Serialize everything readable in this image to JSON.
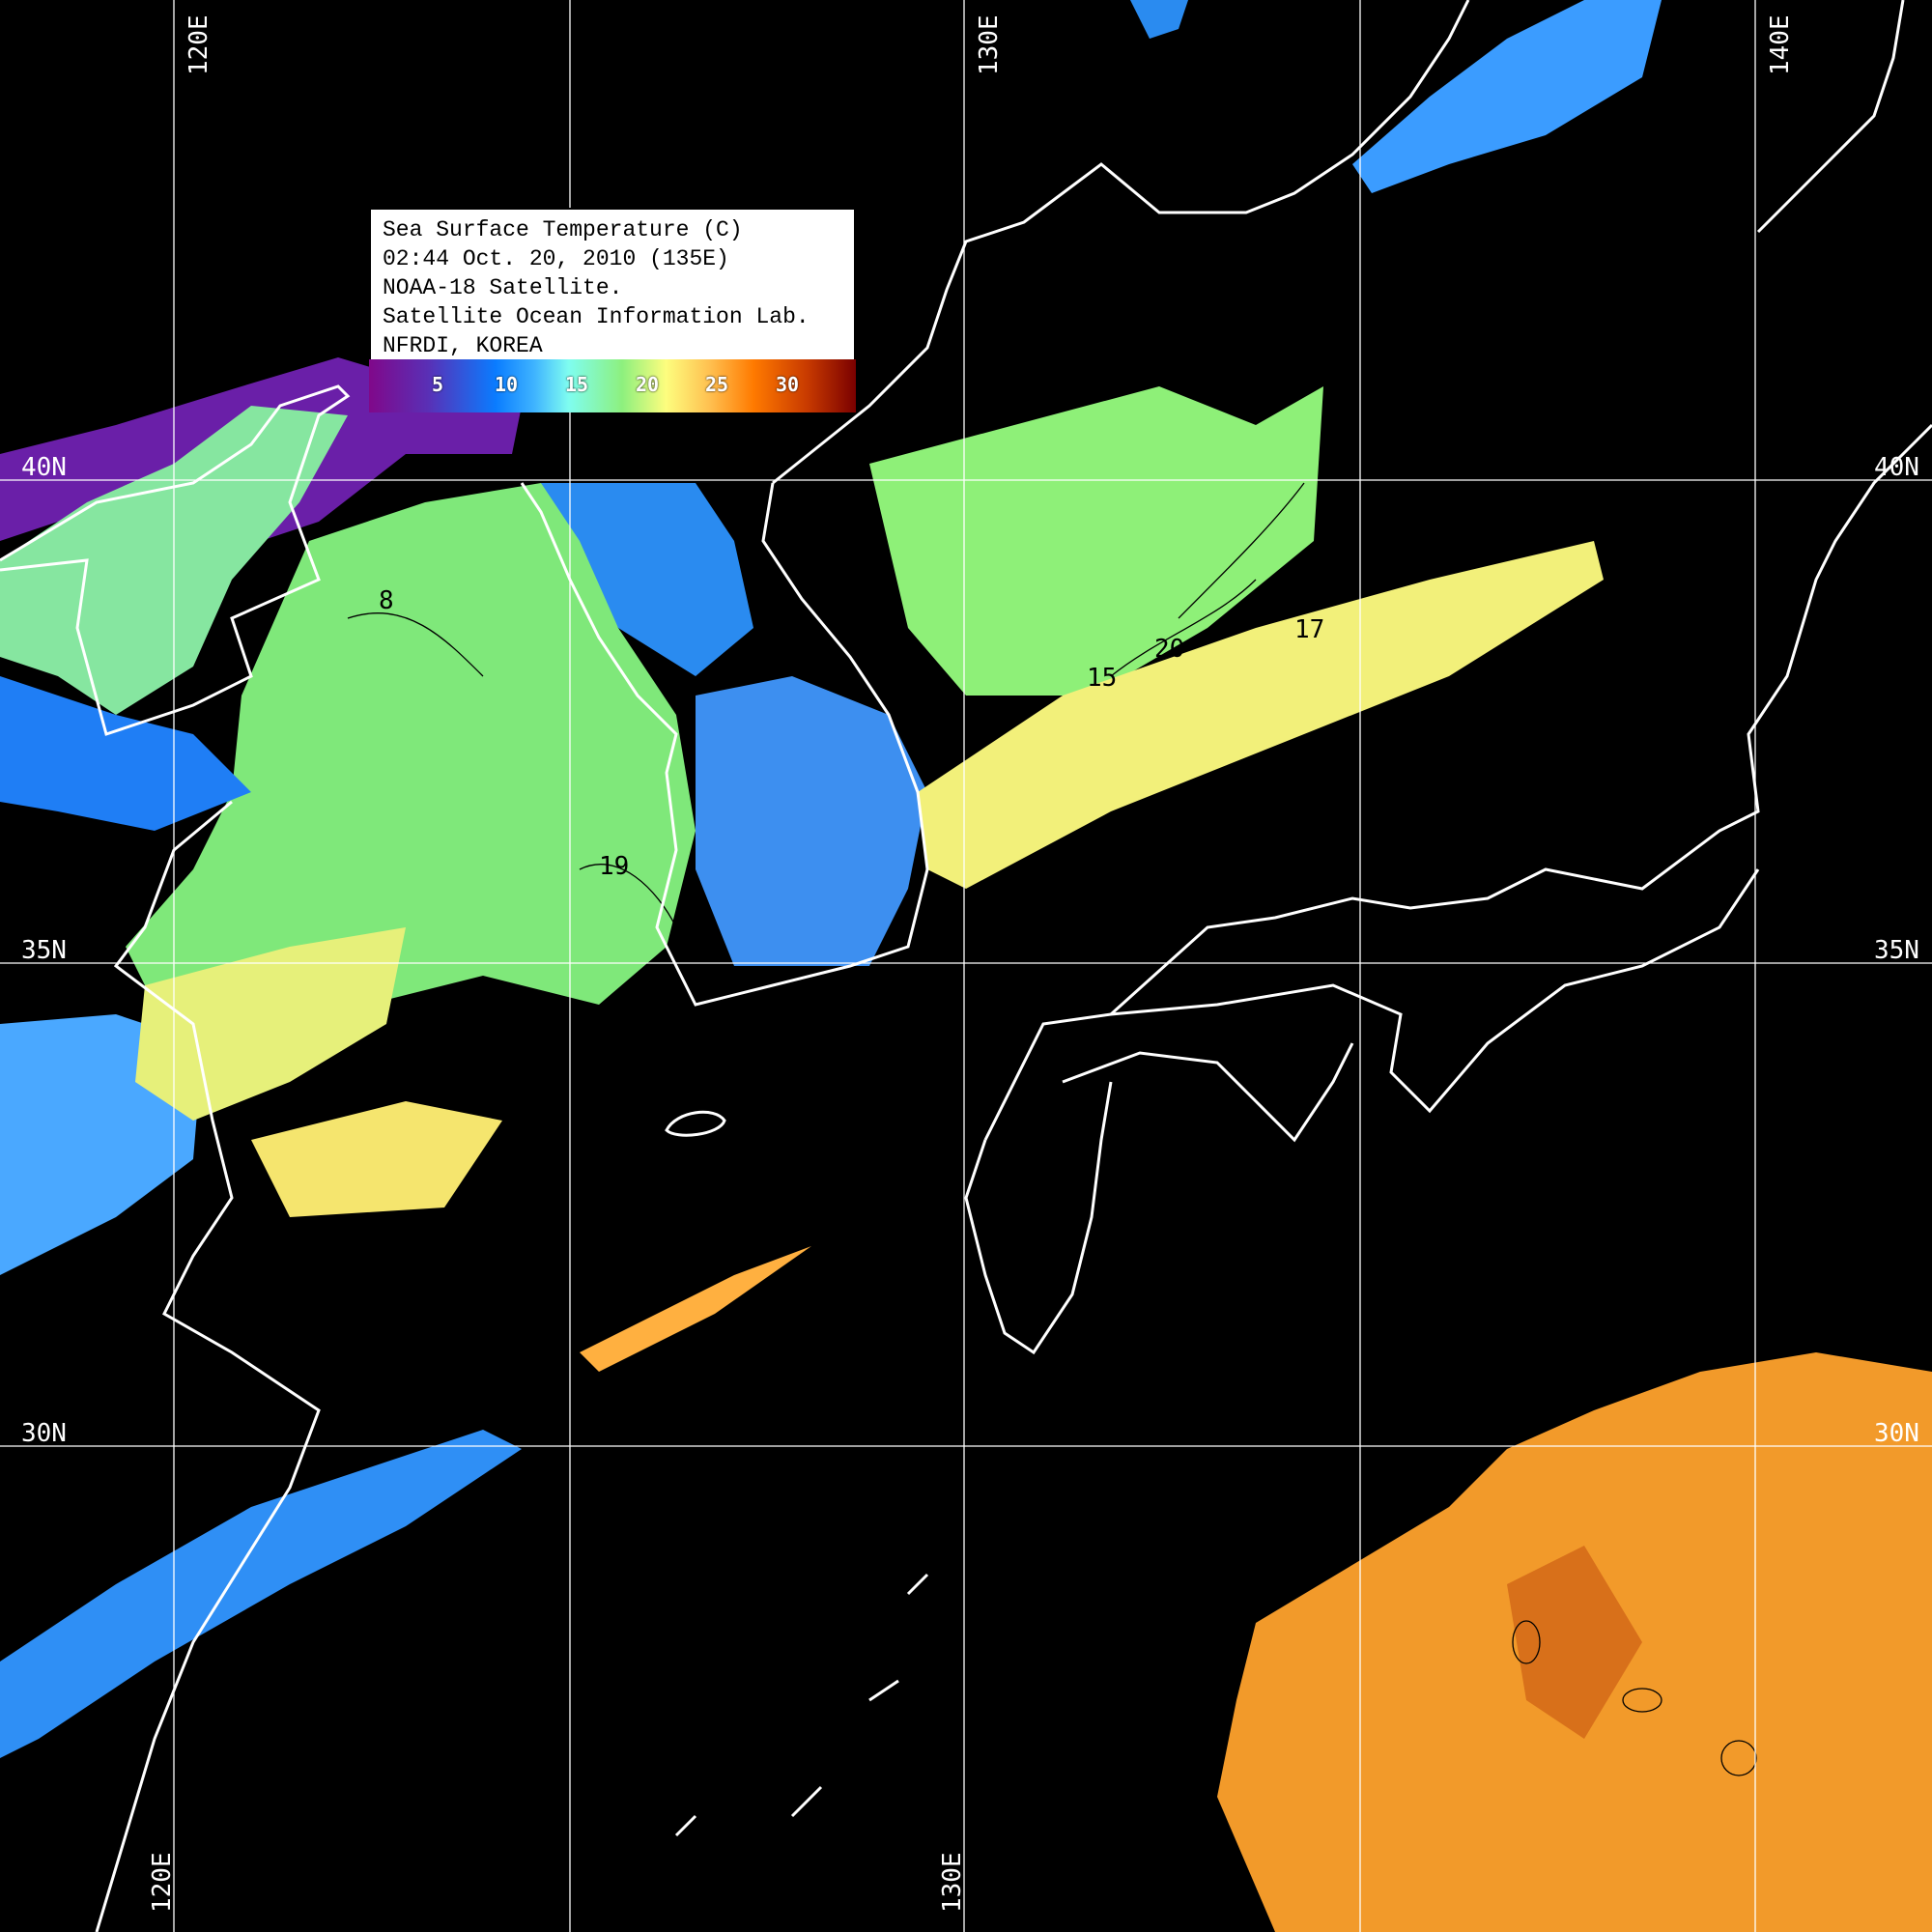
{
  "legend": {
    "lines": [
      "Sea Surface Temperature (C)",
      "02:44 Oct. 20, 2010 (135E)",
      "NOAA-18 Satellite.",
      "Satellite Ocean Information Lab.",
      "NFRDI, KOREA"
    ],
    "colorbar_ticks": [
      "5",
      "10",
      "15",
      "20",
      "25",
      "30"
    ],
    "colorbar_colors": [
      "#80088a",
      "#0a7cff",
      "#7ffdf0",
      "#8df07e",
      "#fdfd7e",
      "#ff7a00",
      "#7a0000"
    ]
  },
  "grid": {
    "lon_labels": [
      "120E",
      "130E",
      "140E"
    ],
    "lon_labels_bottom": [
      "120E",
      "130E"
    ],
    "lat_labels": [
      "40N",
      "35N",
      "30N"
    ]
  },
  "contour_labels": [
    "20",
    "15",
    "19",
    "8",
    "17"
  ],
  "colors": {
    "background": "#000000",
    "coastline": "#ffffff",
    "grid": "#ffffff"
  }
}
